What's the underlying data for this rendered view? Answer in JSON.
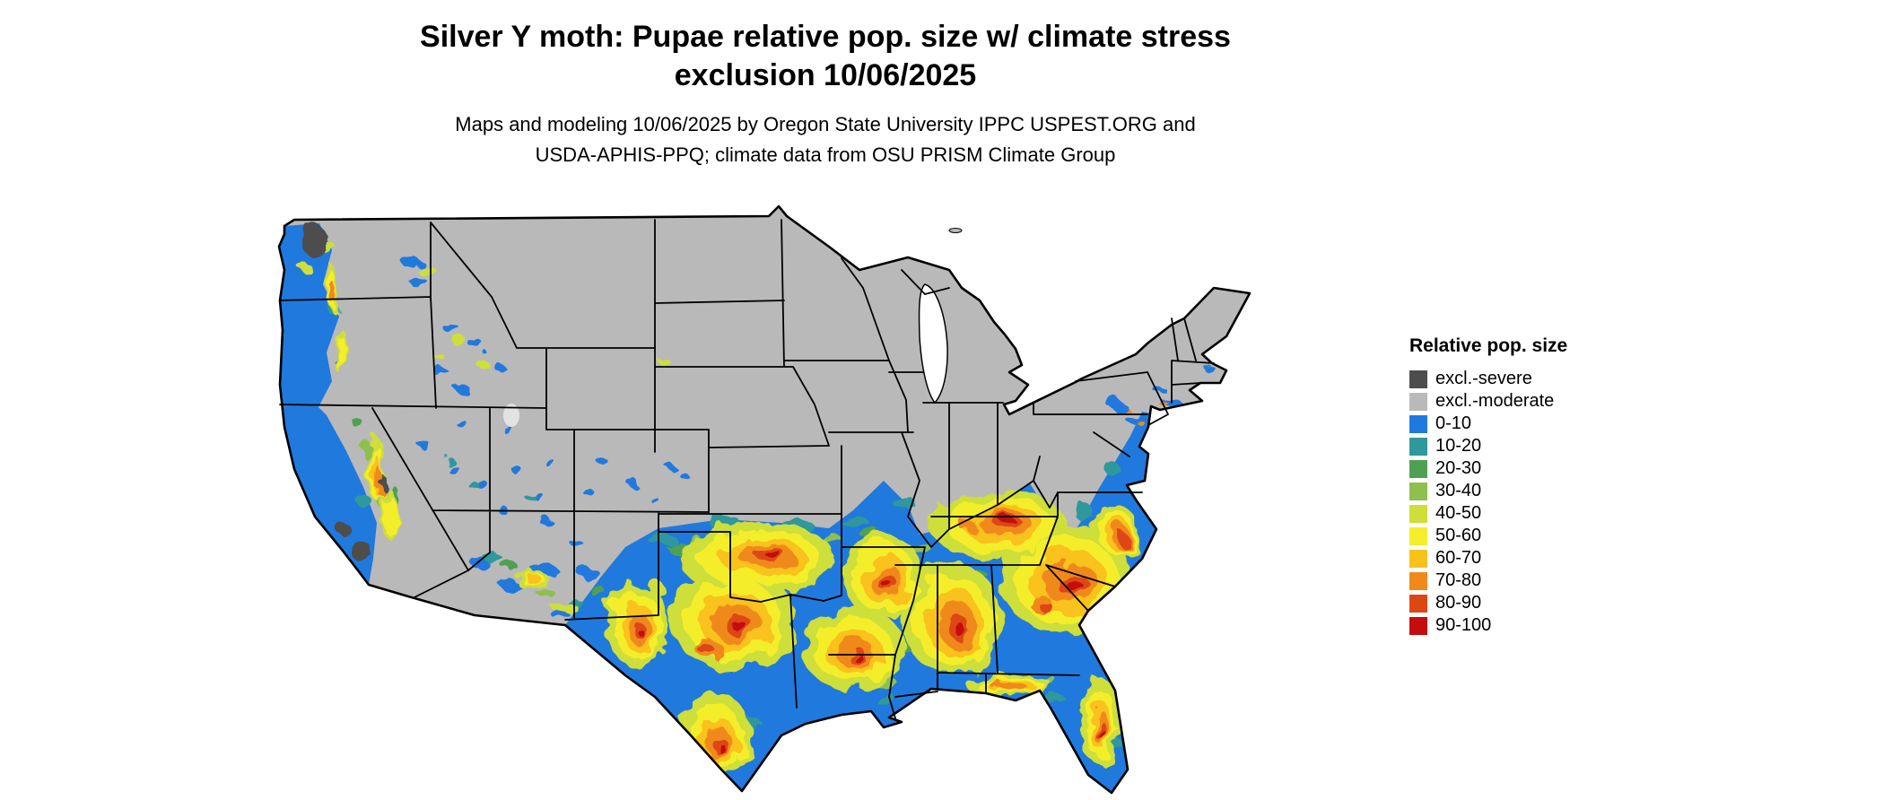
{
  "title": {
    "line1": "Silver Y moth: Pupae relative pop. size w/ climate stress",
    "line2": "exclusion 10/06/2025"
  },
  "subtitle": {
    "line1": "Maps and modeling 10/06/2025 by Oregon State University IPPC USPEST.ORG and",
    "line2": "USDA-APHIS-PPQ; climate data from OSU PRISM Climate Group"
  },
  "legend": {
    "title": "Relative pop. size",
    "items": [
      {
        "label": "excl.-severe",
        "color": "#4d4d4d"
      },
      {
        "label": "excl.-moderate",
        "color": "#b9b9b9"
      },
      {
        "label": "0-10",
        "color": "#2079dd"
      },
      {
        "label": "10-20",
        "color": "#2e989c"
      },
      {
        "label": "20-30",
        "color": "#4fa052"
      },
      {
        "label": "30-40",
        "color": "#8fbf4d"
      },
      {
        "label": "40-50",
        "color": "#cede3b"
      },
      {
        "label": "50-60",
        "color": "#f4ee2c"
      },
      {
        "label": "60-70",
        "color": "#f9c21b"
      },
      {
        "label": "70-80",
        "color": "#f0891c"
      },
      {
        "label": "80-90",
        "color": "#dd4713"
      },
      {
        "label": "90-100",
        "color": "#c40d0d"
      }
    ]
  },
  "map": {
    "region": "Continental United States",
    "water_color": "#ffffff",
    "border_color": "#000000"
  }
}
